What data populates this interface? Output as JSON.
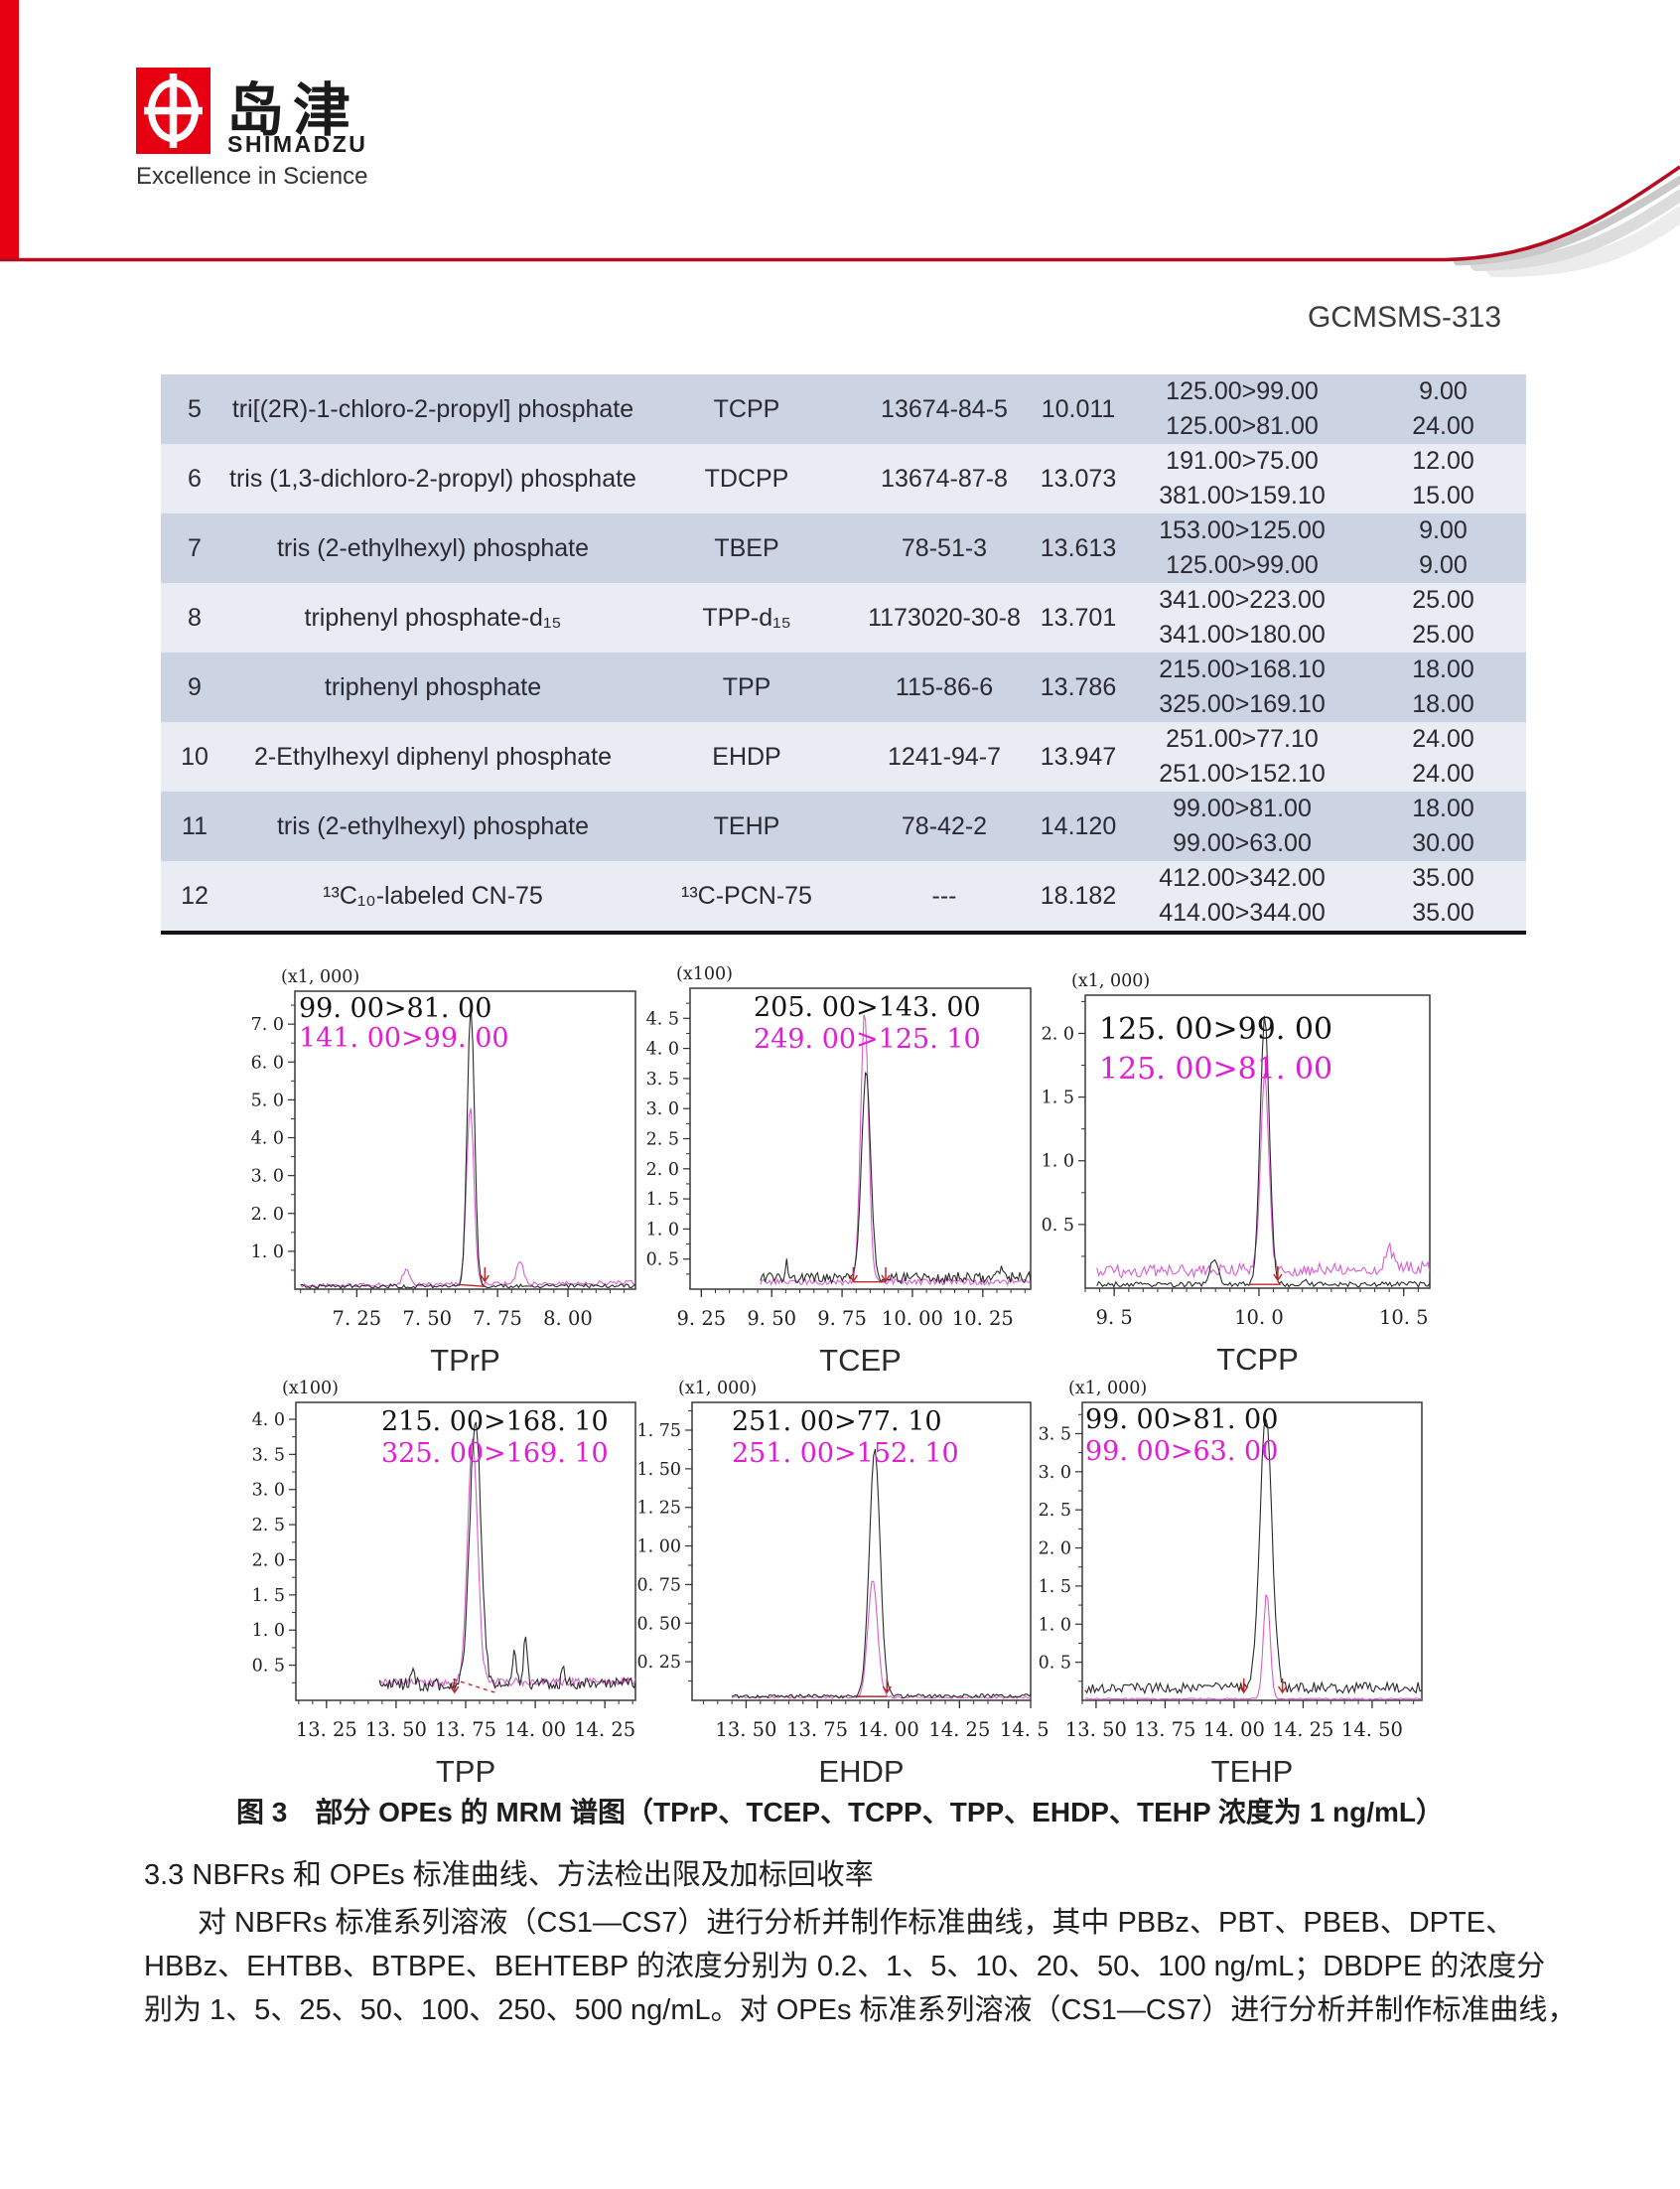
{
  "page": {
    "doc_number": "GCMSMS-313"
  },
  "header": {
    "logo_cjk": "岛津",
    "logo_latin": "SHIMADZU",
    "tagline": "Excellence in Science",
    "brand_red": "#e60012",
    "swoosh_red": "#b50d1f"
  },
  "table": {
    "row_colors": {
      "odd": "#ccd3e3",
      "even": "#e9ecf3"
    },
    "rows": [
      {
        "no": "5",
        "name": "tri[(2R)-1-chloro-2-propyl] phosphate",
        "abbr": "TCPP",
        "cas": "13674-84-5",
        "rt": "10.011",
        "mrm": [
          "125.00>99.00",
          "125.00>81.00"
        ],
        "ce": [
          "9.00",
          "24.00"
        ]
      },
      {
        "no": "6",
        "name": "tris (1,3-dichloro-2-propyl) phosphate",
        "abbr": "TDCPP",
        "cas": "13674-87-8",
        "rt": "13.073",
        "mrm": [
          "191.00>75.00",
          "381.00>159.10"
        ],
        "ce": [
          "12.00",
          "15.00"
        ]
      },
      {
        "no": "7",
        "name": "tris (2-ethylhexyl) phosphate",
        "abbr": "TBEP",
        "cas": "78-51-3",
        "rt": "13.613",
        "mrm": [
          "153.00>125.00",
          "125.00>99.00"
        ],
        "ce": [
          "9.00",
          "9.00"
        ]
      },
      {
        "no": "8",
        "name": "triphenyl phosphate-d₁₅",
        "abbr": "TPP-d₁₅",
        "cas": "1173020-30-8",
        "rt": "13.701",
        "mrm": [
          "341.00>223.00",
          "341.00>180.00"
        ],
        "ce": [
          "25.00",
          "25.00"
        ]
      },
      {
        "no": "9",
        "name": "triphenyl phosphate",
        "abbr": "TPP",
        "cas": "115-86-6",
        "rt": "13.786",
        "mrm": [
          "215.00>168.10",
          "325.00>169.10"
        ],
        "ce": [
          "18.00",
          "18.00"
        ]
      },
      {
        "no": "10",
        "name": "2-Ethylhexyl diphenyl phosphate",
        "abbr": "EHDP",
        "cas": "1241-94-7",
        "rt": "13.947",
        "mrm": [
          "251.00>77.10",
          "251.00>152.10"
        ],
        "ce": [
          "24.00",
          "24.00"
        ]
      },
      {
        "no": "11",
        "name": "tris (2-ethylhexyl) phosphate",
        "abbr": "TEHP",
        "cas": "78-42-2",
        "rt": "14.120",
        "mrm": [
          "99.00>81.00",
          "99.00>63.00"
        ],
        "ce": [
          "18.00",
          "30.00"
        ]
      },
      {
        "no": "12",
        "name": "¹³C₁₀-labeled CN-75",
        "abbr": "¹³C-PCN-75",
        "cas": "---",
        "rt": "18.182",
        "mrm": [
          "412.00>342.00",
          "414.00>344.00"
        ],
        "ce": [
          "35.00",
          "35.00"
        ]
      }
    ]
  },
  "figure": {
    "caption": "图 3　部分 OPEs 的 MRM 谱图（TPrP、TCEP、TCPP、TPP、EHDP、TEHP 浓度为 1 ng/mL）"
  },
  "body_text": {
    "heading": "3.3 NBFRs 和 OPEs 标准曲线、方法检出限及加标回收率",
    "lines": [
      "对 NBFRs 标准系列溶液（CS1—CS7）进行分析并制作标准曲线，其中 PBBz、PBT、PBEB、DPTE、",
      "HBBz、EHTBB、BTBPE、BEHTEBP 的浓度分别为 0.2、1、5、10、20、50、100 ng/mL；DBDPE 的浓度分",
      "别为 1、5、25、50、100、250、500 ng/mL。对 OPEs 标准系列溶液（CS1—CS7）进行分析并制作标准曲线，"
    ]
  },
  "chart_colors": {
    "black_trace": "#2a2a2a",
    "magenta_trace": "#d85ecf",
    "magenta_label": "#e01ed3",
    "black_label": "#141414",
    "red_marker": "#c22525"
  },
  "chart_data": [
    {
      "type": "line",
      "title": "TPrP",
      "scale_label": "(x1, 000)",
      "x_range": [
        7.03,
        8.24
      ],
      "x_ticks": [
        7.25,
        7.5,
        7.75,
        8.0
      ],
      "x_tick_labels": [
        "7. 25",
        "7. 50",
        "7. 75",
        "8. 00"
      ],
      "x_minor_step": 0.05,
      "y_max": 7.87,
      "y_ticks": [
        1,
        2,
        3,
        4,
        5,
        6,
        7
      ],
      "y_tick_labels": [
        "1. 0",
        "2. 0",
        "3. 0",
        "4. 0",
        "5. 0",
        "6. 0",
        "7. 0"
      ],
      "y_step": 1.0,
      "annotations": [
        {
          "text": "99. 00>81. 00",
          "color": "black"
        },
        {
          "text": "141. 00>99. 00",
          "color": "magenta"
        }
      ],
      "series": [
        {
          "name": "141.00>99.00",
          "color": "magenta",
          "start": 7.05,
          "end": 8.24,
          "base": [
            0.09,
            0.17
          ],
          "noise": 0.055,
          "peaks": [
            {
              "c": 7.653,
              "s": 0.013,
              "h": 4.75
            },
            {
              "c": 7.425,
              "s": 0.012,
              "h": 0.38
            },
            {
              "c": 7.83,
              "s": 0.012,
              "h": 0.62
            }
          ]
        },
        {
          "name": "99.00>81.00",
          "color": "black",
          "start": 7.05,
          "end": 8.24,
          "base": [
            0.07,
            0.09
          ],
          "noise": 0.05,
          "peaks": [
            {
              "c": 7.655,
              "s": 0.013,
              "h": 7.4
            }
          ]
        }
      ],
      "red_baseline": {
        "x1": 7.615,
        "y1": 0.12,
        "x2": 7.705,
        "y2": 0.07,
        "dashed": false
      },
      "red_markers": [
        {
          "x": 7.705
        }
      ]
    },
    {
      "type": "line",
      "title": "TCEP",
      "scale_label": "(x100)",
      "x_range": [
        9.21,
        10.42
      ],
      "x_ticks": [
        9.25,
        9.5,
        9.75,
        10.0,
        10.25
      ],
      "x_tick_labels": [
        "9. 25",
        "9. 50",
        "9. 75",
        "10. 00",
        "10. 25"
      ],
      "x_minor_step": 0.05,
      "y_max": 5.0,
      "y_ticks": [
        0.5,
        1.0,
        1.5,
        2.0,
        2.5,
        3.0,
        3.5,
        4.0,
        4.5
      ],
      "y_tick_labels": [
        "0. 5",
        "1. 0",
        "1. 5",
        "2. 0",
        "2. 5",
        "3. 0",
        "3. 5",
        "4. 0",
        "4. 5"
      ],
      "y_step": 0.5,
      "annotations": [
        {
          "text": "205. 00>143. 00",
          "color": "black"
        },
        {
          "text": "249. 00>125. 10",
          "color": "magenta"
        }
      ],
      "series": [
        {
          "name": "249.00>125.10",
          "color": "magenta",
          "start": 9.46,
          "end": 10.42,
          "base": [
            0.12,
            0.12
          ],
          "noise": 0.05,
          "peaks": [
            {
              "c": 9.83,
              "s": 0.014,
              "h": 4.5
            }
          ]
        },
        {
          "name": "205.00>143.00",
          "color": "black",
          "start": 9.46,
          "end": 10.42,
          "base": [
            0.18,
            0.2
          ],
          "noise": 0.09,
          "peaks": [
            {
              "c": 9.835,
              "s": 0.016,
              "h": 3.4
            },
            {
              "c": 9.553,
              "s": 0.005,
              "h": 0.3
            },
            {
              "c": 10.31,
              "s": 0.01,
              "h": 0.12
            }
          ]
        }
      ],
      "red_baseline": {
        "x1": 9.79,
        "y1": 0.12,
        "x2": 9.905,
        "y2": 0.12,
        "dashed": false
      },
      "red_markers": [
        {
          "x": 9.79
        },
        {
          "x": 9.905
        }
      ]
    },
    {
      "type": "line",
      "title": "TCPP",
      "scale_label": "(x1, 000)",
      "x_range": [
        9.4,
        10.59
      ],
      "x_ticks": [
        9.5,
        10.0,
        10.5
      ],
      "x_tick_labels": [
        "9. 5",
        "10. 0",
        "10. 5"
      ],
      "x_minor_step": 0.05,
      "y_max": 2.3,
      "y_ticks": [
        0.5,
        1.0,
        1.5,
        2.0
      ],
      "y_tick_labels": [
        "0. 5",
        "1. 0",
        "1. 5",
        "2. 0"
      ],
      "y_step": 0.5,
      "annotations": [
        {
          "text": "125. 00>99. 00",
          "color": "black"
        },
        {
          "text": "125. 00>81. 00",
          "color": "magenta"
        }
      ],
      "series": [
        {
          "name": "125.00>81.00",
          "color": "magenta",
          "start": 9.44,
          "end": 10.59,
          "base": [
            0.13,
            0.16
          ],
          "noise": 0.05,
          "peaks": [
            {
              "c": 10.02,
              "s": 0.014,
              "h": 1.55
            },
            {
              "c": 10.45,
              "s": 0.012,
              "h": 0.16
            }
          ]
        },
        {
          "name": "125.00>99.00",
          "color": "black",
          "start": 9.44,
          "end": 10.59,
          "base": [
            0.03,
            0.03
          ],
          "noise": 0.02,
          "peaks": [
            {
              "c": 10.02,
              "s": 0.016,
              "h": 2.1
            },
            {
              "c": 9.845,
              "s": 0.014,
              "h": 0.2
            },
            {
              "c": 10.16,
              "s": 0.008,
              "h": 0.05
            }
          ]
        }
      ],
      "red_baseline": {
        "x1": 9.965,
        "y1": 0.03,
        "x2": 10.075,
        "y2": 0.03,
        "dashed": false
      },
      "red_markers": [
        {
          "x": 10.065
        }
      ]
    },
    {
      "type": "line",
      "title": "TPP",
      "scale_label": "(x100)",
      "x_range": [
        13.14,
        14.36
      ],
      "x_ticks": [
        13.25,
        13.5,
        13.75,
        14.0,
        14.25
      ],
      "x_tick_labels": [
        "13. 25",
        "13. 50",
        "13. 75",
        "14. 00",
        "14. 25"
      ],
      "x_minor_step": 0.05,
      "y_max": 4.24,
      "y_ticks": [
        0.5,
        1.0,
        1.5,
        2.0,
        2.5,
        3.0,
        3.5,
        4.0
      ],
      "y_tick_labels": [
        "0. 5",
        "1. 0",
        "1. 5",
        "2. 0",
        "2. 5",
        "3. 0",
        "3. 5",
        "4. 0"
      ],
      "y_step": 0.5,
      "annotations": [
        {
          "text": "215. 00>168. 10",
          "color": "black"
        },
        {
          "text": "325. 00>169. 10",
          "color": "magenta"
        }
      ],
      "series": [
        {
          "name": "325.00>169.10",
          "color": "magenta",
          "start": 13.44,
          "end": 14.36,
          "base": [
            0.25,
            0.27
          ],
          "noise": 0.055,
          "peaks": [
            {
              "c": 13.775,
              "s": 0.018,
              "h": 3.45
            }
          ]
        },
        {
          "name": "215.00>168.10",
          "color": "black",
          "start": 13.44,
          "end": 14.36,
          "base": [
            0.22,
            0.24
          ],
          "noise": 0.09,
          "peaks": [
            {
              "c": 13.785,
              "s": 0.02,
              "h": 3.8
            },
            {
              "c": 13.925,
              "s": 0.007,
              "h": 0.5
            },
            {
              "c": 13.965,
              "s": 0.007,
              "h": 0.62
            },
            {
              "c": 13.56,
              "s": 0.007,
              "h": 0.25
            },
            {
              "c": 14.1,
              "s": 0.006,
              "h": 0.2
            }
          ]
        }
      ],
      "red_baseline": {
        "x1": 13.705,
        "y1": 0.3,
        "x2": 13.865,
        "y2": 0.1,
        "dashed": true
      },
      "red_markers": [
        {
          "x": 13.71
        }
      ]
    },
    {
      "type": "line",
      "title": "EHDP",
      "scale_label": "(x1, 000)",
      "x_range": [
        13.31,
        14.5
      ],
      "x_ticks": [
        13.5,
        13.75,
        14.0,
        14.25,
        14.5
      ],
      "x_tick_labels": [
        "13. 50",
        "13. 75",
        "14. 00",
        "14. 25",
        "14. 50"
      ],
      "x_minor_step": 0.05,
      "y_max": 1.93,
      "y_ticks": [
        0.25,
        0.5,
        0.75,
        1.0,
        1.25,
        1.5,
        1.75
      ],
      "y_tick_labels": [
        "0. 25",
        "0. 50",
        "0. 75",
        "1. 00",
        "1. 25",
        "1. 50",
        "1. 75"
      ],
      "y_step": 0.25,
      "annotations": [
        {
          "text": "251. 00>77. 10",
          "color": "black"
        },
        {
          "text": "251. 00>152. 10",
          "color": "magenta"
        }
      ],
      "series": [
        {
          "name": "251.00>152.10",
          "color": "magenta",
          "start": 13.45,
          "end": 14.5,
          "base": [
            0.02,
            0.02
          ],
          "noise": 0.008,
          "peaks": [
            {
              "c": 13.945,
              "s": 0.017,
              "h": 0.76
            }
          ]
        },
        {
          "name": "251.00>77.10",
          "color": "black",
          "start": 13.45,
          "end": 14.5,
          "base": [
            0.025,
            0.03
          ],
          "noise": 0.012,
          "peaks": [
            {
              "c": 13.952,
              "s": 0.019,
              "h": 1.6
            }
          ]
        }
      ],
      "red_baseline": {
        "x1": 13.89,
        "y1": 0.025,
        "x2": 13.995,
        "y2": 0.025,
        "dashed": false
      },
      "red_markers": [
        {
          "x": 13.995
        }
      ]
    },
    {
      "type": "line",
      "title": "TEHP",
      "scale_label": "(x1, 000)",
      "x_range": [
        13.45,
        14.68
      ],
      "x_ticks": [
        13.5,
        13.75,
        14.0,
        14.25,
        14.5
      ],
      "x_tick_labels": [
        "13. 50",
        "13. 75",
        "14. 00",
        "14. 25",
        "14. 50"
      ],
      "x_minor_step": 0.05,
      "y_max": 3.91,
      "y_ticks": [
        0.5,
        1.0,
        1.5,
        2.0,
        2.5,
        3.0,
        3.5
      ],
      "y_tick_labels": [
        "0. 5",
        "1. 0",
        "1. 5",
        "2. 0",
        "2. 5",
        "3. 0",
        "3. 5"
      ],
      "y_step": 0.5,
      "annotations": [
        {
          "text": "99. 00>81. 00",
          "color": "black"
        },
        {
          "text": "99. 00>63. 00",
          "color": "magenta"
        }
      ],
      "series": [
        {
          "name": "99.00>63.00",
          "color": "magenta",
          "start": 13.46,
          "end": 14.68,
          "base": [
            0.02,
            0.02
          ],
          "noise": 0.01,
          "peaks": [
            {
              "c": 14.118,
              "s": 0.012,
              "h": 1.4
            }
          ]
        },
        {
          "name": "99.00>81.00",
          "color": "black",
          "start": 13.46,
          "end": 14.68,
          "base": [
            0.16,
            0.17
          ],
          "noise": 0.07,
          "peaks": [
            {
              "c": 14.115,
              "s": 0.022,
              "h": 3.55
            }
          ]
        }
      ],
      "red_baseline": null,
      "red_markers": [
        {
          "x": 14.035
        },
        {
          "x": 14.175
        }
      ]
    }
  ]
}
